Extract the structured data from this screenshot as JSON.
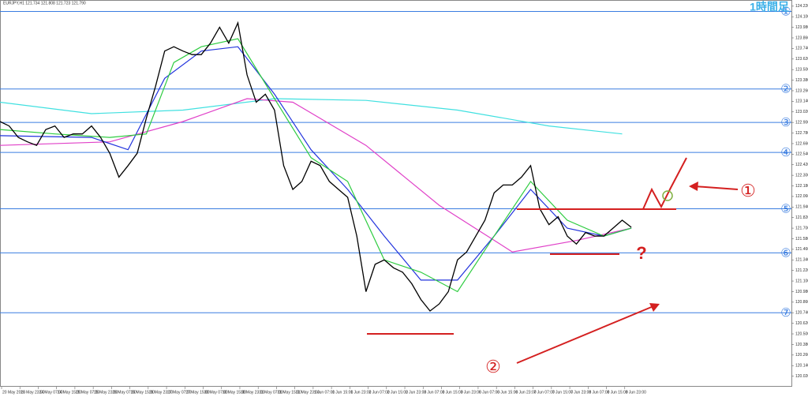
{
  "chart_data": {
    "type": "line",
    "title": "1時間足",
    "symbol_info": "EURJPY,H1 121.734 121.808 121.723 121.790",
    "x_labels": [
      "20 May 2016",
      "23 May 23:00",
      "24 May 07:00",
      "24 May 15:00",
      "25 May 07:00",
      "25 May 23:00",
      "26 May 07:00",
      "26 May 15:00",
      "26 May 23:00",
      "27 May 07:00",
      "27 May 15:00",
      "30 May 07:00",
      "30 May 15:00",
      "30 May 23:00",
      "31 May 07:00",
      "31 May 15:00",
      "31 May 23:00",
      "1 Jun 07:00",
      "1 Jun 15:00",
      "1 Jun 23:00",
      "2 Jun 07:00",
      "2 Jun 15:00",
      "2 Jun 23:00",
      "3 Jun 07:00",
      "3 Jun 15:00",
      "3 Jun 23:00",
      "6 Jun 07:00",
      "6 Jun 15:00",
      "6 Jun 23:00",
      "7 Jun 07:00",
      "7 Jun 15:00",
      "7 Jun 23:00",
      "8 Jun 07:00",
      "8 Jun 15:00",
      "8 Jun 23:00"
    ],
    "xlim": [
      0,
      86.5
    ],
    "ylim": [
      119.9,
      124.29
    ],
    "yticks": [
      {
        "value": 124.22,
        "label": "124.220"
      },
      {
        "value": 124.1,
        "label": "124.100"
      },
      {
        "value": 123.98,
        "label": "123.980"
      },
      {
        "value": 123.86,
        "label": "123.860"
      },
      {
        "value": 123.74,
        "label": "123.740"
      },
      {
        "value": 123.62,
        "label": "123.620"
      },
      {
        "value": 123.5,
        "label": "123.500"
      },
      {
        "value": 123.38,
        "label": "123.380"
      },
      {
        "value": 123.26,
        "label": "123.260"
      },
      {
        "value": 123.14,
        "label": "123.140"
      },
      {
        "value": 123.02,
        "label": "123.020"
      },
      {
        "value": 122.9,
        "label": "122.900"
      },
      {
        "value": 122.78,
        "label": "122.780"
      },
      {
        "value": 122.66,
        "label": "122.660"
      },
      {
        "value": 122.54,
        "label": "122.540"
      },
      {
        "value": 122.42,
        "label": "122.420"
      },
      {
        "value": 122.3,
        "label": "122.300"
      },
      {
        "value": 122.18,
        "label": "122.180"
      },
      {
        "value": 122.06,
        "label": "122.060"
      },
      {
        "value": 121.94,
        "label": "121.940"
      },
      {
        "value": 121.82,
        "label": "121.820"
      },
      {
        "value": 121.7,
        "label": "121.700"
      },
      {
        "value": 121.58,
        "label": "121.580"
      },
      {
        "value": 121.46,
        "label": "121.460"
      },
      {
        "value": 121.34,
        "label": "121.340"
      },
      {
        "value": 121.22,
        "label": "121.220"
      },
      {
        "value": 121.1,
        "label": "121.100"
      },
      {
        "value": 120.98,
        "label": "120.980"
      },
      {
        "value": 120.86,
        "label": "120.860"
      },
      {
        "value": 120.74,
        "label": "120.740"
      },
      {
        "value": 120.62,
        "label": "120.620"
      },
      {
        "value": 120.5,
        "label": "120.500"
      },
      {
        "value": 120.38,
        "label": "120.380"
      },
      {
        "value": 120.26,
        "label": "120.260"
      },
      {
        "value": 120.14,
        "label": "120.140"
      },
      {
        "value": 120.02,
        "label": "120.020"
      }
    ],
    "price": {
      "color": "#000000",
      "values": [
        122.91,
        122.86,
        122.73,
        122.68,
        122.64,
        122.82,
        122.86,
        122.73,
        122.77,
        122.77,
        122.86,
        122.73,
        122.55,
        122.28,
        122.41,
        122.55,
        122.95,
        123.31,
        123.71,
        123.76,
        123.71,
        123.67,
        123.67,
        123.8,
        123.98,
        123.8,
        124.03,
        123.44,
        123.13,
        123.22,
        123.04,
        122.41,
        122.14,
        122.23,
        122.46,
        122.41,
        122.23,
        122.14,
        122.05,
        121.61,
        120.98,
        121.29,
        121.34,
        121.25,
        121.2,
        121.07,
        120.89,
        120.76,
        120.84,
        120.98,
        121.34,
        121.43,
        121.61,
        121.79,
        122.1,
        122.19,
        122.19,
        122.28,
        122.41,
        121.92,
        121.74,
        121.83,
        121.61,
        121.52,
        121.65,
        121.61,
        121.61,
        121.7,
        121.79,
        121.71
      ]
    },
    "moving_averages": [
      {
        "color": "#2ecc40",
        "x": [
          0,
          6,
          12,
          16,
          19,
          22,
          26,
          30,
          34,
          38,
          42,
          46,
          50,
          54,
          58,
          62,
          66,
          69
        ],
        "values": [
          122.82,
          122.77,
          122.73,
          122.77,
          123.58,
          123.76,
          123.85,
          123.17,
          122.5,
          122.23,
          121.34,
          121.2,
          120.98,
          121.61,
          122.23,
          121.79,
          121.61,
          121.7
        ]
      },
      {
        "color": "#2233dd",
        "x": [
          0,
          10,
          14,
          18,
          22,
          26,
          30,
          34,
          38,
          42,
          46,
          50,
          54,
          58,
          62,
          66,
          69
        ],
        "values": [
          122.75,
          122.73,
          122.59,
          123.4,
          123.71,
          123.76,
          123.22,
          122.59,
          122.14,
          121.61,
          121.11,
          121.11,
          121.61,
          122.14,
          121.7,
          121.61,
          121.7
        ]
      },
      {
        "color": "#e040c8",
        "x": [
          0,
          12,
          20,
          27,
          32,
          40,
          48,
          56,
          63,
          69
        ],
        "values": [
          122.64,
          122.68,
          122.91,
          123.17,
          123.13,
          122.64,
          121.96,
          121.43,
          121.56,
          121.7
        ]
      },
      {
        "color": "#40e0e0",
        "x": [
          0,
          10,
          20,
          30,
          40,
          50,
          60,
          68
        ],
        "values": [
          123.13,
          123.0,
          123.04,
          123.17,
          123.15,
          123.04,
          122.86,
          122.77
        ]
      }
    ],
    "level_color": "#3a7de0",
    "levels": [
      {
        "label": "①",
        "value": 124.16
      },
      {
        "label": "②",
        "value": 123.28
      },
      {
        "label": "③",
        "value": 122.9
      },
      {
        "label": "④",
        "value": 122.56
      },
      {
        "label": "⑤",
        "value": 121.92
      },
      {
        "label": "⑥",
        "value": 121.42
      },
      {
        "label": "⑦",
        "value": 120.74
      }
    ],
    "annotations": [
      "①",
      "②",
      "?"
    ]
  }
}
